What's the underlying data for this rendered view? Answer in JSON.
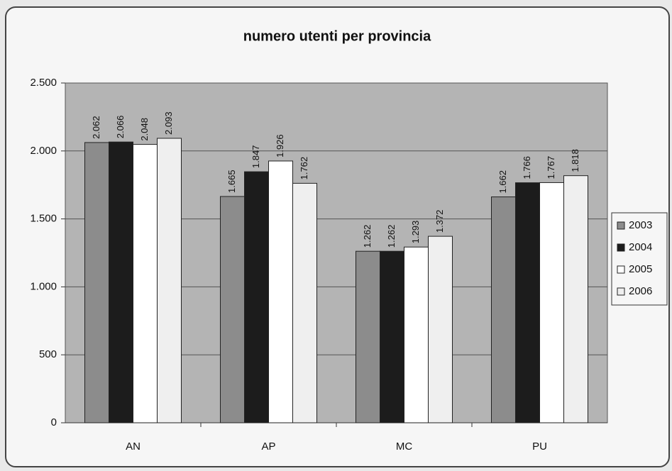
{
  "chart_data": {
    "type": "bar",
    "title": "numero utenti per provincia",
    "categories": [
      "AN",
      "AP",
      "MC",
      "PU"
    ],
    "series": [
      {
        "name": "2003",
        "color": "#8c8c8c",
        "values": [
          2062,
          1665,
          1262,
          1662
        ],
        "value_labels": [
          "2.062",
          "1.665",
          "1.262",
          "1.662"
        ]
      },
      {
        "name": "2004",
        "color": "#1c1c1c",
        "values": [
          2066,
          1847,
          1262,
          1766
        ],
        "value_labels": [
          "2.066",
          "1.847",
          "1.262",
          "1.766"
        ]
      },
      {
        "name": "2005",
        "color": "#ffffff",
        "values": [
          2048,
          1926,
          1293,
          1767
        ],
        "value_labels": [
          "2.048",
          "1.926",
          "1.293",
          "1.767"
        ]
      },
      {
        "name": "2006",
        "color": "#efefef",
        "values": [
          2093,
          1762,
          1372,
          1818
        ],
        "value_labels": [
          "2.093",
          "1.762",
          "1.372",
          "1.818"
        ]
      }
    ],
    "ylim": [
      0,
      2500
    ],
    "yticks": [
      0,
      500,
      {
        "value": 1000,
        "label": "1.000"
      },
      {
        "value": 1500,
        "label": "1.500"
      },
      {
        "value": 2000,
        "label": "2.000"
      },
      {
        "value": 2500,
        "label": "2.500"
      }
    ],
    "grid": true,
    "legend": "right"
  }
}
